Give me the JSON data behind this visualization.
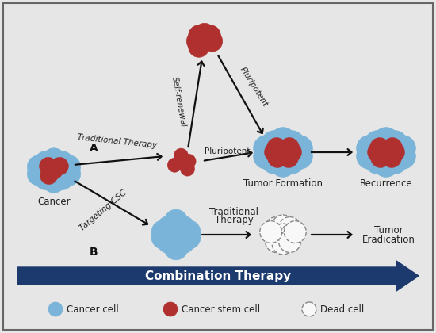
{
  "background_color": "#e6e6e6",
  "border_color": "#666666",
  "cancer_cell_color": "#7ab4d8",
  "stem_cell_color": "#b03030",
  "dead_cell_facecolor": "#f8f8f8",
  "dead_cell_edgecolor": "#888888",
  "arrow_color": "#111111",
  "combo_arrow_color": "#1c3a6e",
  "combo_text": "Combination Therapy",
  "label_fontsize": 8.5,
  "legend_fontsize": 8.5,
  "italic_fontsize": 7.5,
  "bold_label_fontsize": 10,
  "combo_fontsize": 11,
  "legend_items": [
    "Cancer cell",
    "Cancer stem cell",
    "Dead cell"
  ]
}
